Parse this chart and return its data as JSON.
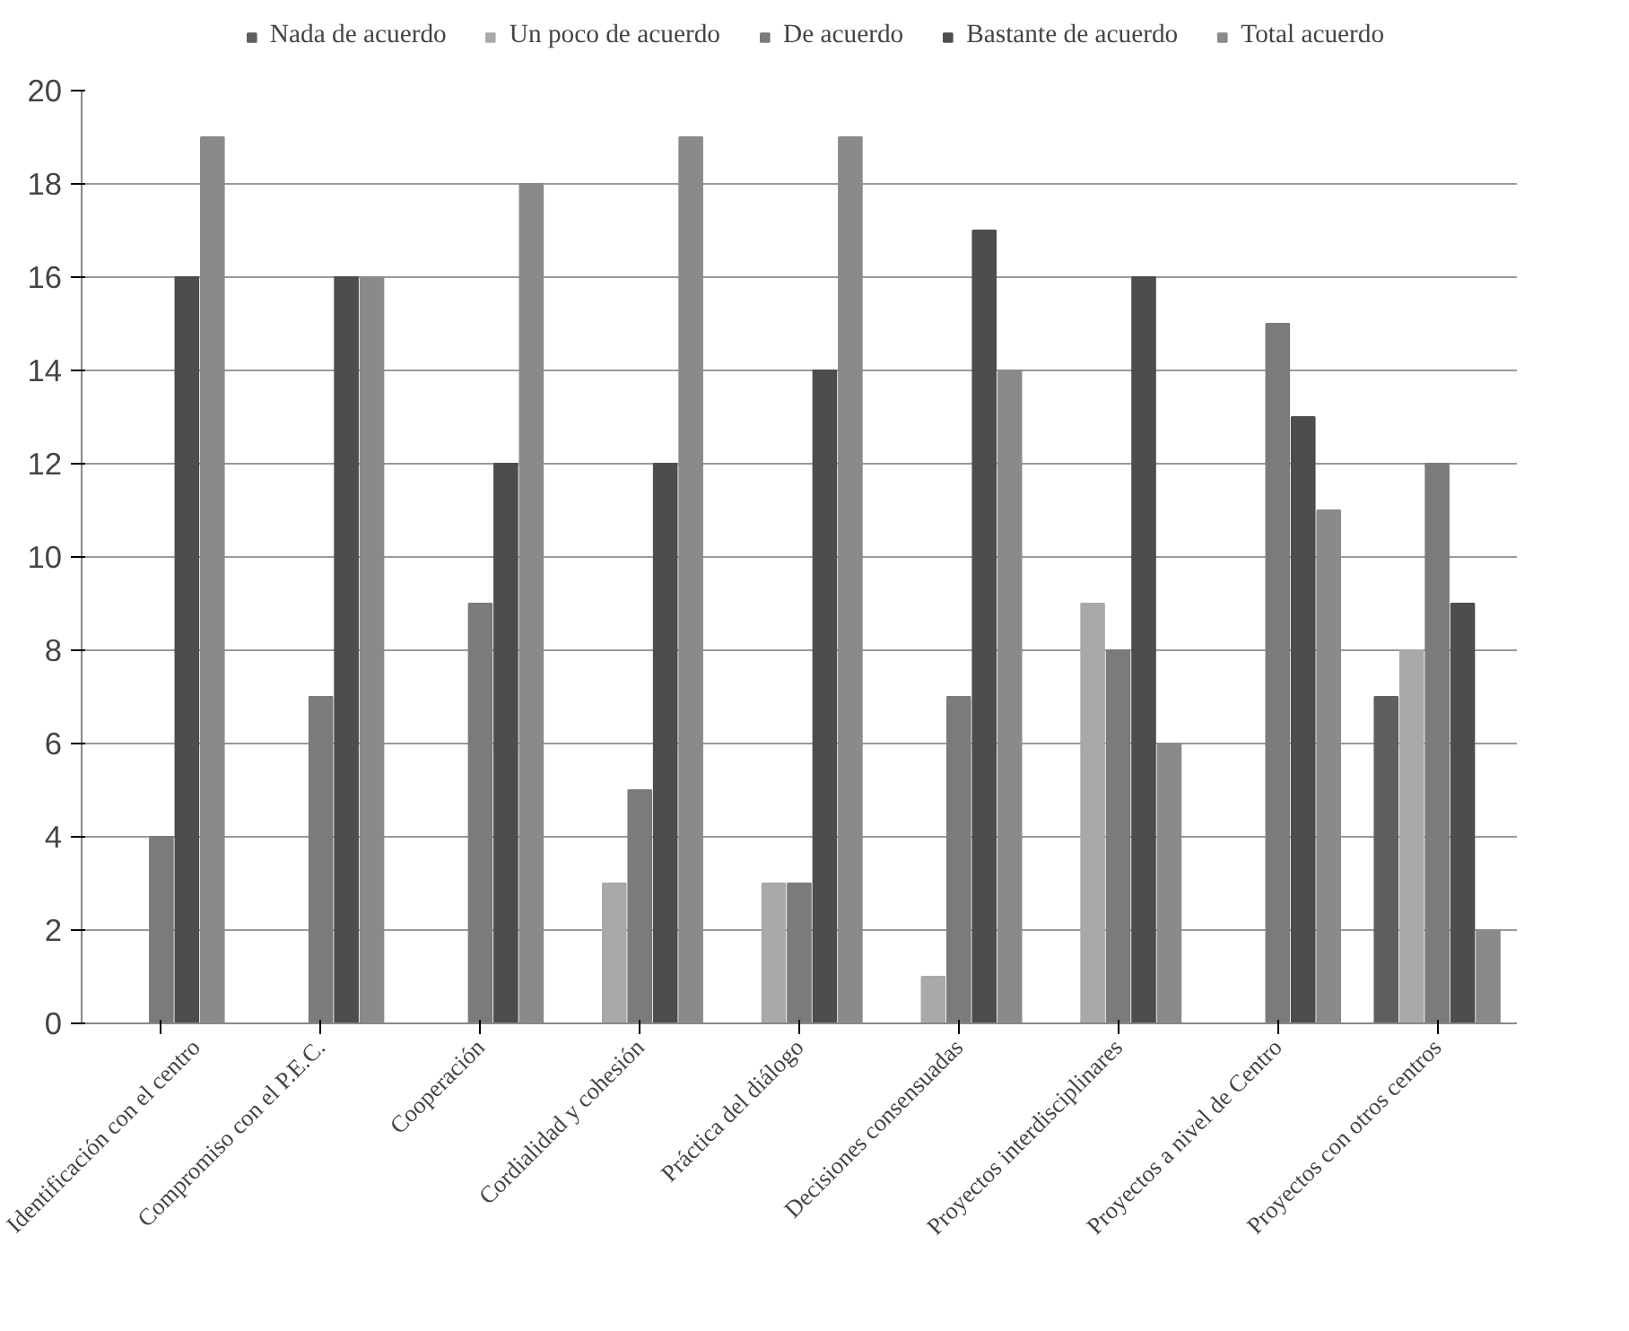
{
  "chart_data": {
    "type": "bar",
    "categories": [
      "Identificación con el centro",
      "Compromiso con el P.E.C.",
      "Cooperación",
      "Cordialidad y cohesión",
      "Práctica del diálogo",
      "Decisiones consensuadas",
      "Proyectos interdisciplinares",
      "Proyectos a nivel de Centro",
      "Proyectos con otros centros"
    ],
    "series": [
      {
        "name": "Nada de acuerdo",
        "color": "#5f5f5f",
        "values": [
          0,
          0,
          0,
          0,
          0,
          0,
          0,
          0,
          7
        ]
      },
      {
        "name": "Un poco de acuerdo",
        "color": "#a9a9a9",
        "values": [
          0,
          0,
          0,
          3,
          3,
          1,
          9,
          0,
          8
        ]
      },
      {
        "name": "De acuerdo",
        "color": "#7b7b7b",
        "values": [
          4,
          7,
          9,
          5,
          3,
          7,
          8,
          15,
          12
        ]
      },
      {
        "name": "Bastante de acuerdo",
        "color": "#4d4d4d",
        "values": [
          16,
          16,
          12,
          12,
          14,
          17,
          16,
          13,
          9
        ]
      },
      {
        "name": "Total acuerdo",
        "color": "#8a8a8a",
        "values": [
          19,
          16,
          18,
          19,
          19,
          14,
          6,
          11,
          2
        ]
      }
    ],
    "ylim": [
      0,
      20
    ],
    "yticks": [
      0,
      2,
      4,
      6,
      8,
      10,
      12,
      14,
      16,
      18,
      20
    ],
    "grid": "y",
    "legend": "top"
  }
}
